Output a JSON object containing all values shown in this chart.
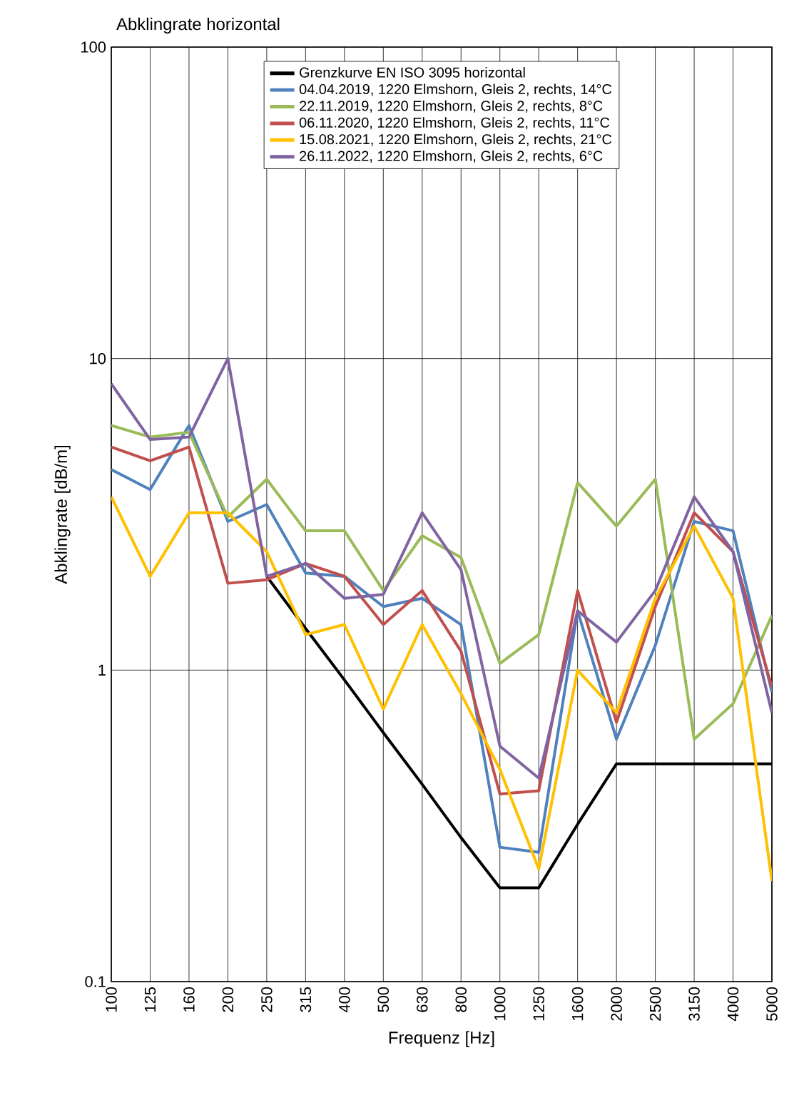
{
  "chart_data": {
    "type": "line",
    "title": "Abklingrate horizontal",
    "xlabel": "Frequenz [Hz]",
    "ylabel": "Abklingrate [dB/m]",
    "categories": [
      "100",
      "125",
      "160",
      "200",
      "250",
      "315",
      "400",
      "500",
      "630",
      "800",
      "1000",
      "1250",
      "1600",
      "2000",
      "2500",
      "3150",
      "4000",
      "5000"
    ],
    "log": "y",
    "ylim": [
      0.1,
      100
    ],
    "yticks": [
      0.1,
      1,
      10,
      100
    ],
    "grid": true,
    "legend": "top",
    "line_style": "solid",
    "marker": "none",
    "series": [
      {
        "name": "Grenzkurve EN ISO 3095 horizontal",
        "color": "#000000",
        "values": [
          null,
          null,
          null,
          null,
          2,
          1.36,
          0.93,
          0.63,
          0.43,
          0.29,
          0.2,
          0.2,
          0.32,
          0.5,
          0.5,
          0.5,
          0.5,
          0.5
        ]
      },
      {
        "name": "04.04.2019, 1220 Elmshorn, Gleis 2, rechts, 14°C",
        "color": "#4f81bd",
        "values": [
          4.4,
          3.8,
          6.1,
          3.0,
          3.4,
          2.05,
          2.0,
          1.6,
          1.7,
          1.4,
          0.27,
          0.26,
          1.55,
          0.6,
          1.2,
          3.0,
          2.8,
          0.85
        ]
      },
      {
        "name": "22.11.2019, 1220 Elmshorn, Gleis 2, rechts, 8°C",
        "color": "#9bbb59",
        "values": [
          6.1,
          5.6,
          5.8,
          3.1,
          4.1,
          2.8,
          2.8,
          1.8,
          2.7,
          2.3,
          1.05,
          1.3,
          4.0,
          2.9,
          4.1,
          0.6,
          0.78,
          1.5
        ]
      },
      {
        "name": "06.11.2020, 1220 Elmshorn, Gleis 2, rechts, 11°C",
        "color": "#c0504d",
        "values": [
          5.2,
          4.7,
          5.2,
          1.9,
          1.95,
          2.2,
          2.0,
          1.4,
          1.8,
          1.15,
          0.4,
          0.41,
          1.8,
          0.68,
          1.6,
          3.2,
          2.4,
          0.88
        ]
      },
      {
        "name": "15.08.2021, 1220 Elmshorn, Gleis 2, rechts, 21°C",
        "color": "#ffc000",
        "values": [
          3.6,
          2.0,
          3.2,
          3.2,
          2.4,
          1.3,
          1.4,
          0.75,
          1.4,
          0.84,
          0.48,
          0.23,
          1.0,
          0.73,
          1.7,
          2.9,
          1.7,
          0.21
        ]
      },
      {
        "name": "26.11.2022, 1220 Elmshorn, Gleis 2, rechts, 6°C",
        "color": "#8064a2",
        "values": [
          8.3,
          5.5,
          5.6,
          10,
          2.0,
          2.2,
          1.7,
          1.75,
          3.2,
          2.1,
          0.57,
          0.45,
          1.55,
          1.23,
          1.8,
          3.6,
          2.4,
          0.73
        ]
      }
    ]
  }
}
